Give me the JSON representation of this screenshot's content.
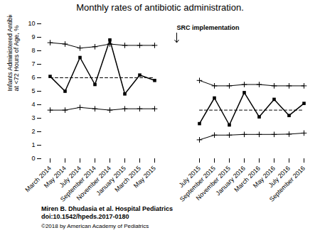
{
  "chart_data": {
    "type": "line",
    "title": "Monthly rates of antibiotic administration.",
    "ylabel": "Infants Administered Antibiotics\nat <72 Hours of Age, %",
    "categories": [
      "March 2014",
      "May 2014",
      "July 2014",
      "September 2014",
      "November 2014",
      "January 2015",
      "March 2015",
      "May 2015",
      null,
      null,
      "July 2015",
      "September 2015",
      "November 2015",
      "January 2016",
      "March 2016",
      "May 2016",
      "July 2016",
      "September 2016"
    ],
    "series": [
      {
        "values": [
          6.1,
          5.0,
          7.5,
          5.5,
          8.8,
          4.8,
          6.2,
          5.8,
          null,
          null,
          2.6,
          4.5,
          2.5,
          4.9,
          3.1,
          4.4,
          3.2,
          4.1
        ],
        "color": "black",
        "marker": "square",
        "line_style": "solid"
      },
      {
        "values": [
          8.6,
          8.5,
          8.2,
          8.3,
          8.5,
          8.4,
          8.4,
          8.4,
          null,
          null,
          5.8,
          5.4,
          5.4,
          5.5,
          5.5,
          5.4,
          5.4,
          5.4
        ],
        "color": "black",
        "marker": "plus",
        "line_style": "solid"
      },
      {
        "values": [
          3.6,
          3.6,
          3.8,
          3.7,
          3.6,
          3.7,
          3.7,
          3.7,
          null,
          null,
          1.4,
          1.75,
          1.75,
          1.8,
          1.8,
          1.8,
          1.82,
          1.9
        ],
        "color": "black",
        "marker": "plus",
        "line_style": "solid"
      },
      {
        "values": [
          6.0,
          6.0,
          6.0,
          6.0,
          6.0,
          6.0,
          6.0,
          6.0,
          null,
          null,
          3.6,
          3.6,
          3.6,
          3.6,
          3.6,
          3.6,
          3.6,
          3.6
        ],
        "color": "black",
        "marker": "none",
        "line_style": "dashed"
      }
    ],
    "ylim": [
      0,
      10
    ],
    "yticks": [
      0,
      1,
      2,
      3,
      4,
      5,
      6,
      7,
      8,
      9,
      10
    ],
    "grid": false,
    "annotations": [
      {
        "text": "SRC implementation"
      },
      {
        "text": "Miren B. Dhudasia et al. Hospital Pediatrics\ndoi:10.1542/hpeds.2017-0180"
      },
      {
        "text": "©2018 by American Academy of Pediatrics"
      }
    ]
  }
}
